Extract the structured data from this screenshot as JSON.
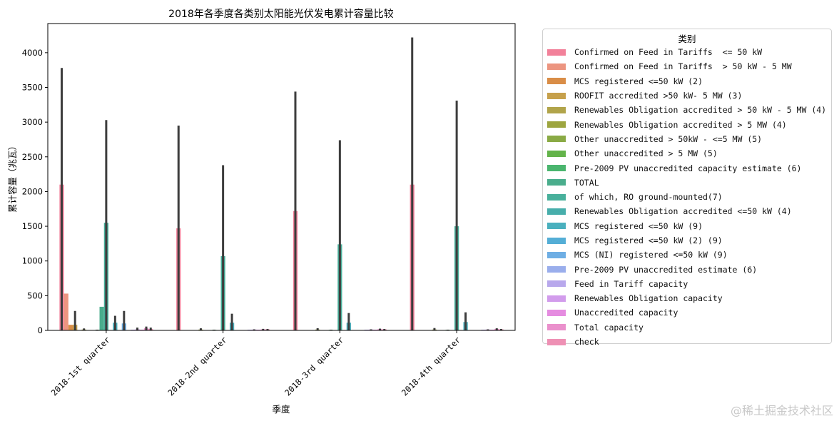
{
  "chart_data": {
    "type": "bar",
    "title": "2018年各季度各类别太阳能光伏发电累计容量比较",
    "xlabel": "季度",
    "ylabel": "累计容量（兆瓦）",
    "ylim": [
      0,
      4420
    ],
    "yticks": [
      0,
      500,
      1000,
      1500,
      2000,
      2500,
      3000,
      3500,
      4000
    ],
    "categories": [
      "2018-1st quarter",
      "2018-2nd quarter",
      "2018-3rd quarter",
      "2018-4th quarter"
    ],
    "legend_title": "类别",
    "legend_position": "outside-right",
    "series": [
      {
        "name": "Confirmed on Feed in Tariffs  <= 50 kW",
        "color": "#f2819a",
        "values": [
          2100,
          1470,
          1720,
          2100
        ],
        "ci_high": [
          3780,
          2950,
          3440,
          4220
        ]
      },
      {
        "name": "Confirmed on Feed in Tariffs  > 50 kW - 5 MW",
        "color": "#ec9580",
        "values": [
          530,
          0,
          0,
          0
        ],
        "ci_high": [
          0,
          0,
          0,
          0
        ]
      },
      {
        "name": "MCS registered <=50 kW (2)",
        "color": "#d98d47",
        "values": [
          80,
          0,
          0,
          0
        ],
        "ci_high": [
          0,
          0,
          0,
          0
        ]
      },
      {
        "name": "ROOFIT accredited >50 kW- 5 MW (3)",
        "color": "#c6a04b",
        "values": [
          80,
          0,
          0,
          0
        ],
        "ci_high": [
          280,
          0,
          0,
          0
        ]
      },
      {
        "name": "Renewables Obligation accredited > 50 kW - 5 MW (4)",
        "color": "#b1a44a",
        "values": [
          0,
          0,
          0,
          0
        ],
        "ci_high": [
          0,
          0,
          0,
          0
        ]
      },
      {
        "name": "Renewables Obligation accredited > 5 MW (4)",
        "color": "#9da53f",
        "values": [
          12,
          12,
          12,
          12
        ],
        "ci_high": [
          28,
          30,
          32,
          34
        ]
      },
      {
        "name": "Other unaccredited > 50kW - <=5 MW (5)",
        "color": "#8aaa45",
        "values": [
          0,
          0,
          0,
          0
        ],
        "ci_high": [
          0,
          0,
          0,
          0
        ]
      },
      {
        "name": "Other unaccredited > 5 MW (5)",
        "color": "#63b34a",
        "values": [
          0,
          0,
          0,
          0
        ],
        "ci_high": [
          0,
          0,
          0,
          0
        ]
      },
      {
        "name": "Pre-2009 PV unaccredited capacity estimate (6)",
        "color": "#4ab56e",
        "values": [
          8,
          8,
          8,
          8
        ],
        "ci_high": [
          10,
          10,
          10,
          10
        ]
      },
      {
        "name": "TOTAL",
        "color": "#4aad8c",
        "values": [
          340,
          0,
          0,
          0
        ],
        "ci_high": [
          0,
          0,
          0,
          0
        ]
      },
      {
        "name": "of which, RO ground-mounted(7)",
        "color": "#48b09b",
        "values": [
          1550,
          1070,
          1240,
          1500
        ],
        "ci_high": [
          3030,
          2380,
          2740,
          3310
        ]
      },
      {
        "name": "Renewables Obligation accredited <=50 kW (4)",
        "color": "#47aeab",
        "values": [
          0,
          0,
          0,
          0
        ],
        "ci_high": [
          0,
          0,
          0,
          0
        ]
      },
      {
        "name": "MCS registered <=50 kW (9)",
        "color": "#4ab0be",
        "values": [
          110,
          110,
          110,
          120
        ],
        "ci_high": [
          210,
          240,
          250,
          260
        ]
      },
      {
        "name": "MCS registered <=50 kW (2) (9)",
        "color": "#54aed6",
        "values": [
          0,
          0,
          0,
          0
        ],
        "ci_high": [
          0,
          0,
          0,
          0
        ]
      },
      {
        "name": "MCS (NI) registered <=50 kW (9)",
        "color": "#6eaee4",
        "values": [
          100,
          0,
          0,
          0
        ],
        "ci_high": [
          280,
          0,
          0,
          0
        ]
      },
      {
        "name": "Pre-2009 PV unaccredited estimate (6)",
        "color": "#9aaeec",
        "values": [
          0,
          0,
          0,
          0
        ],
        "ci_high": [
          0,
          0,
          0,
          0
        ]
      },
      {
        "name": "Feed in Tariff capacity",
        "color": "#b8a8ec",
        "values": [
          10,
          10,
          10,
          10
        ],
        "ci_high": [
          10,
          10,
          10,
          10
        ]
      },
      {
        "name": "Renewables Obligation capacity",
        "color": "#d29cec",
        "values": [
          15,
          12,
          12,
          12
        ],
        "ci_high": [
          40,
          15,
          15,
          15
        ]
      },
      {
        "name": "Unaccredited capacity",
        "color": "#e58ce0",
        "values": [
          10,
          10,
          10,
          10
        ],
        "ci_high": [
          10,
          10,
          10,
          10
        ]
      },
      {
        "name": "Total capacity",
        "color": "#ea90cc",
        "values": [
          30,
          15,
          18,
          22
        ],
        "ci_high": [
          55,
          22,
          25,
          30
        ]
      },
      {
        "name": "check",
        "color": "#ee90b4",
        "values": [
          20,
          15,
          15,
          15
        ],
        "ci_high": [
          40,
          20,
          20,
          20
        ]
      }
    ]
  },
  "watermark": "@稀土掘金技术社区"
}
